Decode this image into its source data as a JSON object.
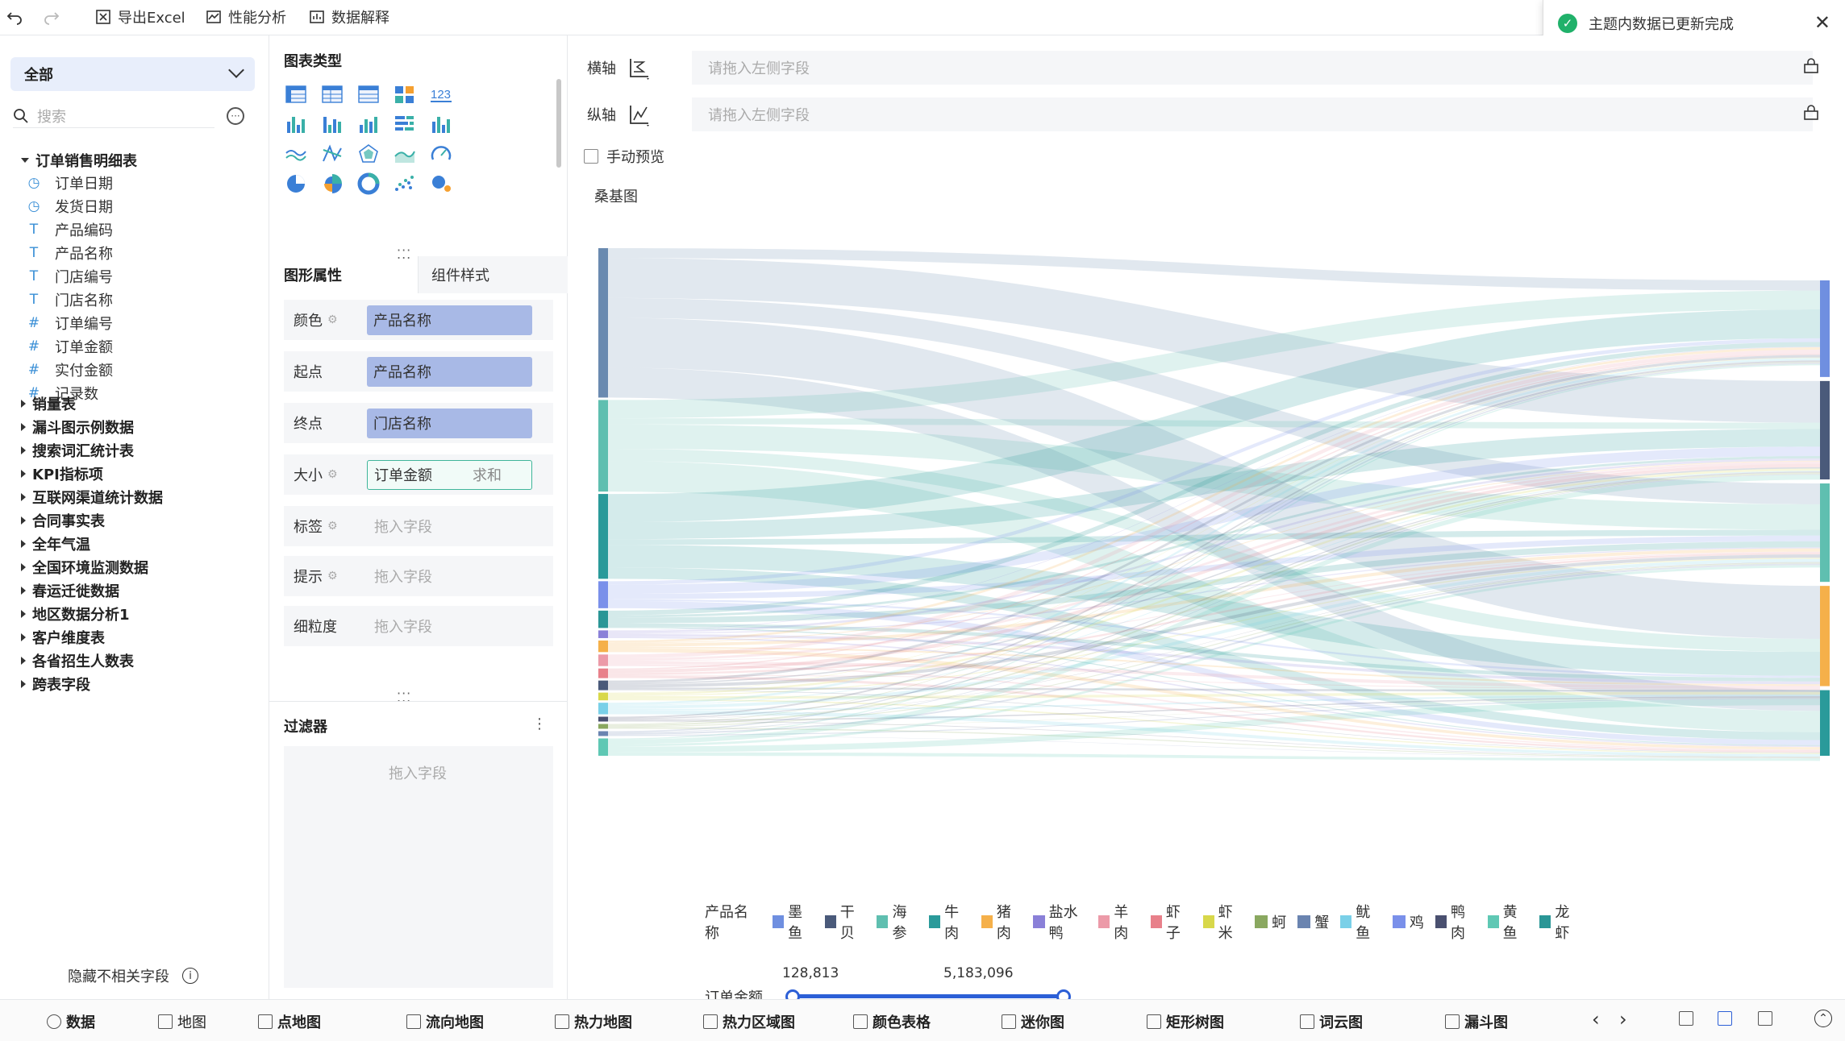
{
  "toolbar": {
    "undo_icon": "undo-icon",
    "redo_icon": "redo-icon",
    "export_excel": "导出Excel",
    "perf_analysis": "性能分析",
    "data_explain": "数据解释"
  },
  "toast": {
    "message": "主题内数据已更新完成",
    "status_color": "#20b16a"
  },
  "left_panel": {
    "scope": "全部",
    "search_placeholder": "搜索",
    "tree": {
      "open_table": "订单销售明细表",
      "fields": [
        {
          "label": "订单日期",
          "type": "date"
        },
        {
          "label": "发货日期",
          "type": "date"
        },
        {
          "label": "产品编码",
          "type": "text"
        },
        {
          "label": "产品名称",
          "type": "text"
        },
        {
          "label": "门店编号",
          "type": "text"
        },
        {
          "label": "门店名称",
          "type": "text"
        },
        {
          "label": "订单编号",
          "type": "number"
        },
        {
          "label": "订单金额",
          "type": "number"
        },
        {
          "label": "实付金额",
          "type": "number"
        },
        {
          "label": "记录数",
          "type": "count"
        }
      ],
      "tables": [
        "销量表",
        "漏斗图示例数据",
        "搜索词汇统计表",
        "KPI指标项",
        "互联网渠道统计数据",
        "合同事实表",
        "全年气温",
        "全国环境监测数据",
        "春运迁徙数据",
        "地区数据分析1",
        "客户维度表",
        "各省招生人数表",
        "跨表字段"
      ]
    },
    "hide_unrelated": "隐藏不相关字段"
  },
  "middle_panel": {
    "chart_type_title": "图表类型",
    "tab_graph_props": "图形属性",
    "tab_component_style": "组件样式",
    "props": {
      "color_label": "颜色",
      "color_value": "产品名称",
      "start_label": "起点",
      "start_value": "产品名称",
      "end_label": "终点",
      "end_value": "门店名称",
      "size_label": "大小",
      "size_value": "订单金额",
      "size_agg": "求和",
      "tag_label": "标签",
      "tag_placeholder": "拖入字段",
      "tip_label": "提示",
      "tip_placeholder": "拖入字段",
      "grain_label": "细粒度",
      "grain_placeholder": "拖入字段"
    },
    "filter_title": "过滤器",
    "filter_placeholder": "拖入字段",
    "number_chart_label": "123"
  },
  "right_panel": {
    "x_axis_label": "横轴",
    "x_axis_placeholder": "请拖入左侧字段",
    "y_axis_label": "纵轴",
    "y_axis_placeholder": "请拖入左侧字段",
    "manual_preview": "手动预览",
    "chart_title": "桑基图",
    "legend_title": "产品名称",
    "legend": [
      {
        "name": "墨鱼",
        "color": "#6f8fe0"
      },
      {
        "name": "干贝",
        "color": "#4a5a7a"
      },
      {
        "name": "海参",
        "color": "#5fbfb0"
      },
      {
        "name": "牛肉",
        "color": "#2a9a9a"
      },
      {
        "name": "猪肉",
        "color": "#f5b04a"
      },
      {
        "name": "盐水鸭",
        "color": "#8a80d8"
      },
      {
        "name": "羊肉",
        "color": "#ec9aa8"
      },
      {
        "name": "虾子",
        "color": "#e8808a"
      },
      {
        "name": "虾米",
        "color": "#d8d84a"
      },
      {
        "name": "蚵",
        "color": "#8aa860"
      },
      {
        "name": "蟹",
        "color": "#6a84b0"
      },
      {
        "name": "鱿鱼",
        "color": "#7ad0e8"
      },
      {
        "name": "鸡",
        "color": "#7a90ea"
      },
      {
        "name": "鸭肉",
        "color": "#4a5070"
      },
      {
        "name": "黄鱼",
        "color": "#5fc8b4"
      },
      {
        "name": "龙虾",
        "color": "#2a9696"
      }
    ],
    "range_label": "订单金额",
    "range_min": "128,813",
    "range_max": "5,183,096"
  },
  "chart_data": {
    "type": "sankey",
    "title": "桑基图",
    "sources": [
      {
        "name": "墨鱼",
        "color": "#6a8ab0",
        "weight": 155
      },
      {
        "name": "海参",
        "color": "#5fbfb0",
        "weight": 95
      },
      {
        "name": "牛肉",
        "color": "#2a9a9a",
        "weight": 88
      },
      {
        "name": "鸡",
        "color": "#7a90ea",
        "weight": 28
      },
      {
        "name": "龙虾",
        "color": "#2a9696",
        "weight": 18
      },
      {
        "name": "盐水鸭",
        "color": "#8a80d8",
        "weight": 8
      },
      {
        "name": "猪肉",
        "color": "#f5b04a",
        "weight": 12
      },
      {
        "name": "羊肉",
        "color": "#ec9aa8",
        "weight": 12
      },
      {
        "name": "虾子",
        "color": "#e8808a",
        "weight": 10
      },
      {
        "name": "干贝",
        "color": "#4a5a7a",
        "weight": 10
      },
      {
        "name": "虾米",
        "color": "#d8d84a",
        "weight": 8
      },
      {
        "name": "鱿鱼",
        "color": "#7ad0e8",
        "weight": 12
      },
      {
        "name": "鸭肉",
        "color": "#4a5070",
        "weight": 5
      },
      {
        "name": "蚵",
        "color": "#8aa860",
        "weight": 5
      },
      {
        "name": "蟹",
        "color": "#6a84b0",
        "weight": 5
      },
      {
        "name": "黄鱼",
        "color": "#5fc8b4",
        "weight": 18
      }
    ],
    "targets": [
      {
        "color": "#6f8fe0",
        "weight": 106
      },
      {
        "color": "#4a5a7a",
        "weight": 108
      },
      {
        "color": "#5fbfb0",
        "weight": 108
      },
      {
        "color": "#f5b04a",
        "weight": 110
      },
      {
        "color": "#2a9a9a",
        "weight": 72
      }
    ]
  },
  "bottom_bar": {
    "items": [
      "数据",
      "地图",
      "点地图",
      "流向地图",
      "热力地图",
      "热力区域图",
      "颜色表格",
      "迷你图",
      "矩形树图",
      "词云图",
      "漏斗图"
    ]
  }
}
